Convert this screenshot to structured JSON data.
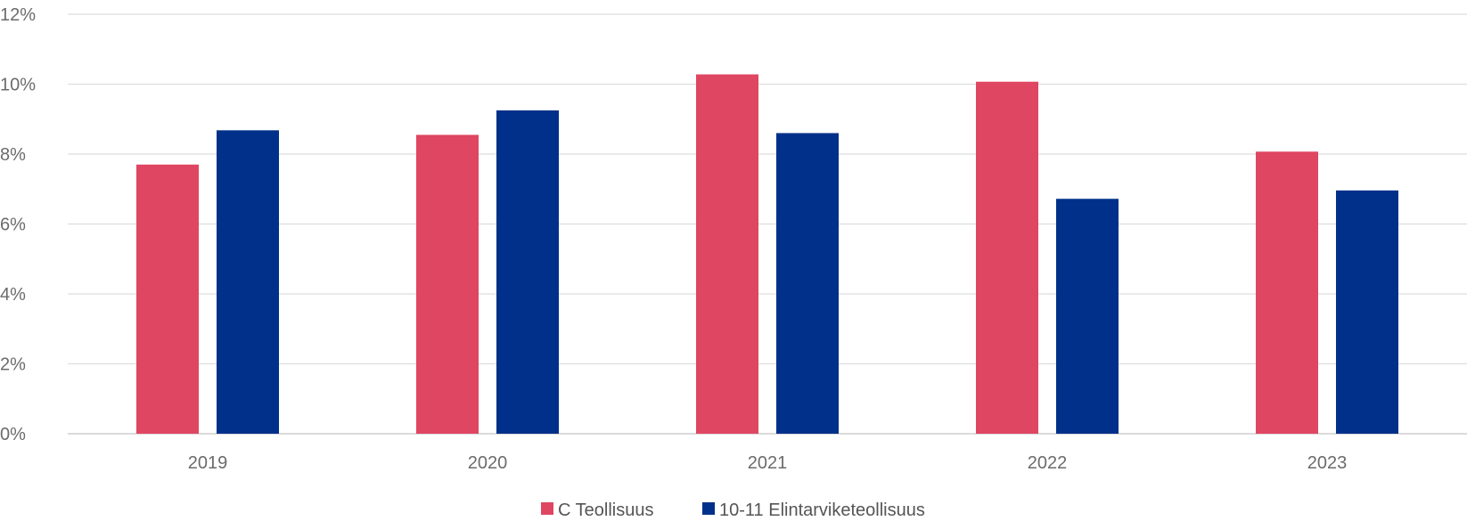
{
  "chart_data": {
    "type": "bar",
    "title": "",
    "xlabel": "",
    "ylabel": "",
    "categories": [
      "2019",
      "2020",
      "2021",
      "2022",
      "2023"
    ],
    "series": [
      {
        "name": "C Teollisuus",
        "color": "#df4662",
        "values": [
          7.7,
          8.55,
          10.28,
          10.07,
          8.07
        ]
      },
      {
        "name": "10-11 Elintarviketeollisuus",
        "color": "#00308a",
        "values": [
          8.68,
          9.25,
          8.6,
          6.72,
          6.96
        ]
      }
    ],
    "ylim": [
      0,
      12
    ],
    "yticks": [
      0,
      2,
      4,
      6,
      8,
      10,
      12
    ],
    "ytick_labels": [
      "0%",
      "2%",
      "4%",
      "6%",
      "8%",
      "10%",
      "12%"
    ],
    "grid": true,
    "legend_position": "bottom-center"
  }
}
